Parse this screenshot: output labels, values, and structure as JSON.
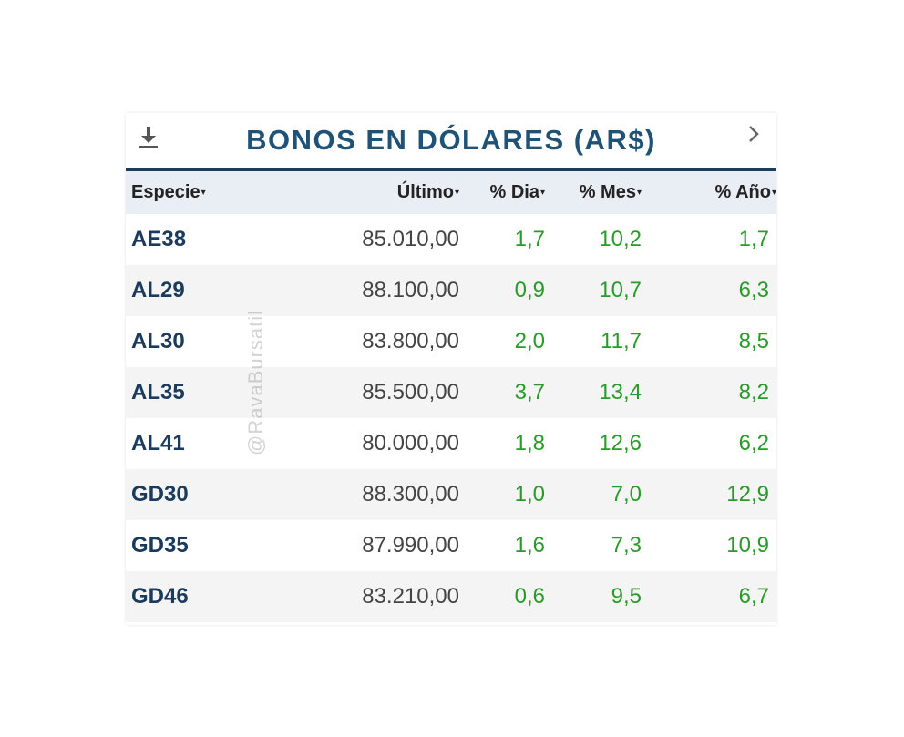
{
  "widget": {
    "title": "BONOS EN DÓLARES (AR$)",
    "download_icon": "download-icon",
    "next_icon": "chevron-right-icon"
  },
  "table": {
    "headers": {
      "especie": "Especie",
      "ultimo": "Último",
      "dia": "% Dia",
      "mes": "% Mes",
      "anio": "% Año",
      "sort_caret": "▾"
    },
    "rows": [
      {
        "especie": "AE38",
        "ultimo": "85.010,00",
        "dia": "1,7",
        "mes": "10,2",
        "anio": "1,7"
      },
      {
        "especie": "AL29",
        "ultimo": "88.100,00",
        "dia": "0,9",
        "mes": "10,7",
        "anio": "6,3"
      },
      {
        "especie": "AL30",
        "ultimo": "83.800,00",
        "dia": "2,0",
        "mes": "11,7",
        "anio": "8,5"
      },
      {
        "especie": "AL35",
        "ultimo": "85.500,00",
        "dia": "3,7",
        "mes": "13,4",
        "anio": "8,2"
      },
      {
        "especie": "AL41",
        "ultimo": "80.000,00",
        "dia": "1,8",
        "mes": "12,6",
        "anio": "6,2"
      },
      {
        "especie": "GD30",
        "ultimo": "88.300,00",
        "dia": "1,0",
        "mes": "7,0",
        "anio": "12,9"
      },
      {
        "especie": "GD35",
        "ultimo": "87.990,00",
        "dia": "1,6",
        "mes": "7,3",
        "anio": "10,9"
      },
      {
        "especie": "GD46",
        "ultimo": "83.210,00",
        "dia": "0,6",
        "mes": "9,5",
        "anio": "6,7"
      }
    ]
  },
  "watermark": "@RavaBursatil",
  "colors": {
    "title": "#1f5277",
    "header_border": "#1d3d5c",
    "positive": "#2a9a2a",
    "ticker": "#1a3b5d"
  }
}
